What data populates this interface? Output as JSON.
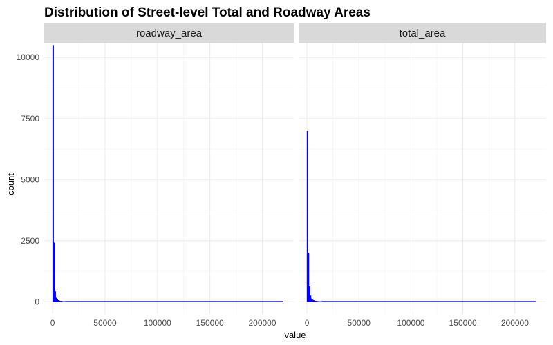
{
  "chart_data": {
    "type": "histogram",
    "title": "Distribution of Street-level Total and Roadway Areas",
    "xlabel": "value",
    "ylabel": "count",
    "xlim": [
      -8000,
      230000
    ],
    "ylim": [
      -500,
      10600
    ],
    "x_ticks": [
      0,
      50000,
      100000,
      150000,
      200000
    ],
    "x_tick_labels": [
      "0",
      "50000",
      "100000",
      "150000",
      "200000"
    ],
    "y_ticks": [
      0,
      2500,
      5000,
      7500,
      10000
    ],
    "y_tick_labels": [
      "0",
      "2500",
      "5000",
      "7500",
      "10000"
    ],
    "x_max": 220000,
    "bar_color": "#0000ff",
    "grid": true,
    "panels": [
      {
        "name": "roadway_area",
        "bins": [
          {
            "x": 0,
            "count": 10500
          },
          {
            "x": 1000,
            "count": 2420
          },
          {
            "x": 2000,
            "count": 420
          },
          {
            "x": 3000,
            "count": 160
          },
          {
            "x": 4000,
            "count": 90
          },
          {
            "x": 5000,
            "count": 60
          },
          {
            "x": 6000,
            "count": 40
          },
          {
            "x": 7000,
            "count": 30
          },
          {
            "x": 8000,
            "count": 25
          },
          {
            "x": 9000,
            "count": 20
          },
          {
            "x": 10000,
            "count": 15
          },
          {
            "x": 11000,
            "count": 12
          }
        ],
        "tail_count": 5
      },
      {
        "name": "total_area",
        "bins": [
          {
            "x": 0,
            "count": 6980
          },
          {
            "x": 1000,
            "count": 2000
          },
          {
            "x": 2000,
            "count": 620
          },
          {
            "x": 3000,
            "count": 250
          },
          {
            "x": 4000,
            "count": 130
          },
          {
            "x": 5000,
            "count": 80
          },
          {
            "x": 6000,
            "count": 55
          },
          {
            "x": 7000,
            "count": 40
          },
          {
            "x": 8000,
            "count": 30
          },
          {
            "x": 9000,
            "count": 25
          },
          {
            "x": 10000,
            "count": 20
          },
          {
            "x": 11000,
            "count": 15
          },
          {
            "x": 12000,
            "count": 12
          },
          {
            "x": 13000,
            "count": 10
          }
        ],
        "tail_count": 5
      }
    ]
  }
}
